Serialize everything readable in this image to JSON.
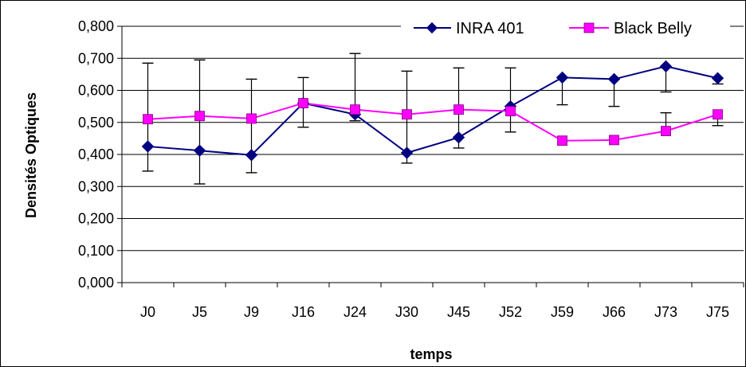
{
  "chart_data": {
    "type": "line",
    "title": "",
    "xlabel": "temps",
    "ylabel": "Densités Optiques",
    "ylim": [
      0,
      0.8
    ],
    "y_ticks": [
      "0,000",
      "0,100",
      "0,200",
      "0,300",
      "0,400",
      "0,500",
      "0,600",
      "0,700",
      "0,800"
    ],
    "y_tick_values": [
      0,
      0.1,
      0.2,
      0.3,
      0.4,
      0.5,
      0.6,
      0.7,
      0.8
    ],
    "categories": [
      "J0",
      "J5",
      "J9",
      "J16",
      "J24",
      "J30",
      "J45",
      "J52",
      "J59",
      "J66",
      "J73",
      "J75"
    ],
    "grid": true,
    "legend_position": "top-right",
    "series": [
      {
        "name": "INRA 401",
        "color": "#000080",
        "marker": "diamond",
        "values": [
          0.425,
          0.412,
          0.398,
          0.56,
          0.525,
          0.405,
          0.453,
          0.55,
          0.64,
          0.635,
          0.675,
          0.638
        ],
        "error_upper": [
          0.685,
          0.695,
          0.635,
          0.64,
          0.715,
          0.66,
          0.67,
          0.67,
          0.64,
          0.635,
          0.675,
          0.638
        ],
        "error_lower": [
          0.348,
          0.308,
          0.343,
          0.485,
          0.505,
          0.373,
          0.42,
          0.47,
          0.555,
          0.55,
          0.595,
          0.62
        ]
      },
      {
        "name": "Black Belly",
        "color": "#FF00FF",
        "marker": "square",
        "values": [
          0.51,
          0.52,
          0.512,
          0.56,
          0.54,
          0.525,
          0.54,
          0.535,
          0.443,
          0.445,
          0.473,
          0.525
        ],
        "error_upper": [
          0.51,
          0.52,
          0.512,
          0.56,
          0.54,
          0.525,
          0.54,
          0.535,
          0.443,
          0.445,
          0.53,
          0.525
        ],
        "error_lower": [
          0.51,
          0.52,
          0.512,
          0.56,
          0.54,
          0.525,
          0.54,
          0.535,
          0.443,
          0.445,
          0.473,
          0.49
        ]
      }
    ]
  }
}
